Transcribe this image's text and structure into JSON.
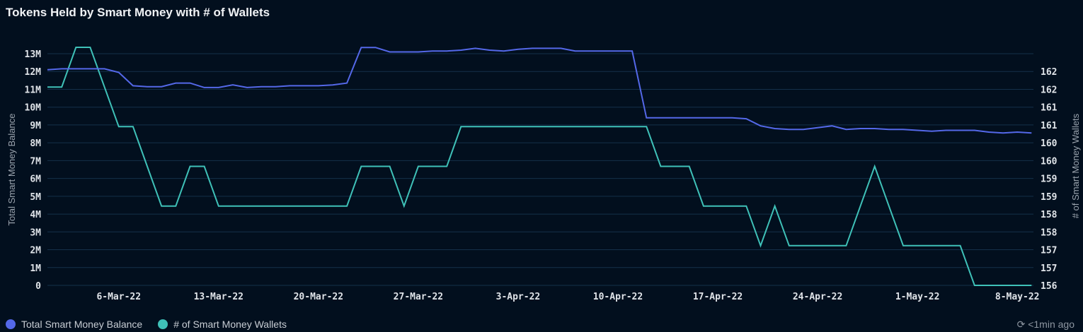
{
  "title": "Tokens Held by Smart Money with # of Wallets",
  "updated": "<1min ago",
  "chart_data": {
    "type": "line",
    "title": "Tokens Held by Smart Money with # of Wallets",
    "ylabel": "Total Smart Money Balance",
    "y2label": "# of Smart Money Wallets",
    "ylim": [
      0,
      13000000
    ],
    "y2lim": [
      156,
      161.84
    ],
    "yticks": [
      "0",
      "1M",
      "2M",
      "3M",
      "4M",
      "5M",
      "6M",
      "7M",
      "8M",
      "9M",
      "10M",
      "11M",
      "12M",
      "13M"
    ],
    "y2ticks": [
      "156",
      "157",
      "157",
      "158",
      "158",
      "159",
      "159",
      "160",
      "160",
      "161",
      "161",
      "162",
      "162"
    ],
    "xticks": [
      "6-Mar-22",
      "13-Mar-22",
      "20-Mar-22",
      "27-Mar-22",
      "3-Apr-22",
      "10-Apr-22",
      "17-Apr-22",
      "24-Apr-22",
      "1-May-22",
      "8-May-22"
    ],
    "xtick_day_index": [
      5,
      12,
      19,
      26,
      33,
      40,
      47,
      54,
      61,
      68
    ],
    "x_start": "1-Mar-22",
    "grid": true,
    "legend_position": "bottom-left",
    "series": [
      {
        "name": "Total Smart Money Balance",
        "axis": "left",
        "color": "#5468e8",
        "values_millions": [
          12.1,
          12.15,
          12.15,
          12.15,
          12.15,
          11.95,
          11.2,
          11.15,
          11.15,
          11.35,
          11.35,
          11.1,
          11.1,
          11.25,
          11.1,
          11.15,
          11.15,
          11.2,
          11.2,
          11.2,
          11.25,
          11.35,
          13.35,
          13.35,
          13.1,
          13.1,
          13.1,
          13.15,
          13.15,
          13.2,
          13.3,
          13.2,
          13.15,
          13.25,
          13.3,
          13.3,
          13.3,
          13.15,
          13.15,
          13.15,
          13.15,
          13.15,
          9.4,
          9.4,
          9.4,
          9.4,
          9.4,
          9.4,
          9.4,
          9.35,
          8.95,
          8.8,
          8.75,
          8.75,
          8.85,
          8.95,
          8.75,
          8.8,
          8.8,
          8.75,
          8.75,
          8.7,
          8.65,
          8.7,
          8.7,
          8.7,
          8.6,
          8.55,
          8.6,
          8.55
        ]
      },
      {
        "name": "# of Smart Money Wallets",
        "axis": "right",
        "color": "#3fc1b8",
        "values": [
          161,
          161,
          162,
          162,
          161,
          160,
          160,
          159,
          158,
          158,
          159,
          159,
          158,
          158,
          158,
          158,
          158,
          158,
          158,
          158,
          158,
          158,
          159,
          159,
          159,
          158,
          159,
          159,
          159,
          160,
          160,
          160,
          160,
          160,
          160,
          160,
          160,
          160,
          160,
          160,
          160,
          160,
          160,
          159,
          159,
          159,
          158,
          158,
          158,
          158,
          157,
          158,
          157,
          157,
          157,
          157,
          157,
          158,
          159,
          158,
          157,
          157,
          157,
          157,
          157,
          156,
          156,
          156,
          156,
          156
        ]
      }
    ]
  }
}
